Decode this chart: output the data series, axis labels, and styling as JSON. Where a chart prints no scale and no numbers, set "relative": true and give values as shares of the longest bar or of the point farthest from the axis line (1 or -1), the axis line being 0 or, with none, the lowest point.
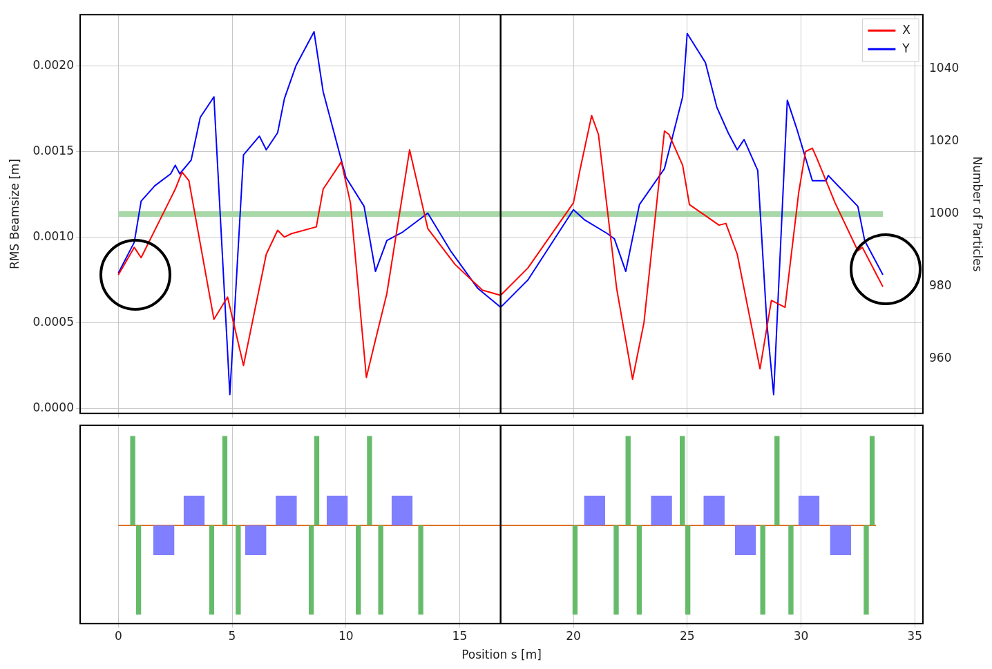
{
  "chart_data": [
    {
      "type": "line",
      "ylabel": "RMS Beamsize [m]",
      "y2label": "Number of Particles",
      "xlim": [
        -1.68,
        35.36
      ],
      "xticks": [
        0,
        5,
        10,
        15,
        20,
        25,
        30,
        35
      ],
      "ylim": [
        -3e-05,
        0.0023
      ],
      "yticks": [
        {
          "value": 0,
          "label": "0.0000"
        },
        {
          "value": 0.0005,
          "label": "0.0005"
        },
        {
          "value": 0.001,
          "label": "0.0010"
        },
        {
          "value": 0.0015,
          "label": "0.0015"
        },
        {
          "value": 0.002,
          "label": "0.0020"
        }
      ],
      "y2lim": [
        945,
        1055
      ],
      "y2ticks": [
        960,
        980,
        1000,
        1020,
        1040
      ],
      "grid": true,
      "legend": "top right",
      "tick_labels": "y",
      "marker": "none",
      "line_style": "solid",
      "ref_lines": [
        {
          "axis": "x",
          "value": 16.8,
          "color": "#000000"
        }
      ],
      "series": [
        {
          "name": "X",
          "color": "#ff0000",
          "x": [
            0,
            0.7,
            1.0,
            2.2,
            2.5,
            2.8,
            3.1,
            4.2,
            4.8,
            5.5,
            6.5,
            7.0,
            7.3,
            7.6,
            8.7,
            9.0,
            9.8,
            10.2,
            10.9,
            11.3,
            11.8,
            12.8,
            13.6,
            14.8,
            16.0,
            16.8,
            18.0,
            20.0,
            20.3,
            20.8,
            21.1,
            21.9,
            22.6,
            23.1,
            24.0,
            24.2,
            24.8,
            25.1,
            26.4,
            26.7,
            27.2,
            28.2,
            28.7,
            29.3,
            29.9,
            30.2,
            30.5,
            30.7,
            31.5,
            32.5,
            32.7,
            33.6
          ],
          "values": [
            0.00078,
            0.00094,
            0.00088,
            0.0012,
            0.00128,
            0.00138,
            0.00133,
            0.00052,
            0.00065,
            0.00025,
            0.0009,
            0.00104,
            0.001,
            0.00102,
            0.00106,
            0.00128,
            0.00144,
            0.0012,
            0.00018,
            0.0004,
            0.00067,
            0.00151,
            0.00105,
            0.00084,
            0.00069,
            0.00066,
            0.00082,
            0.0012,
            0.0014,
            0.00171,
            0.0016,
            0.0007,
            0.00017,
            0.0005,
            0.00162,
            0.0016,
            0.00142,
            0.00119,
            0.00107,
            0.00108,
            0.0009,
            0.00023,
            0.00063,
            0.00059,
            0.00126,
            0.0015,
            0.00152,
            0.00146,
            0.0012,
            0.00092,
            0.00094,
            0.00071
          ]
        },
        {
          "name": "Y",
          "color": "#0000ff",
          "x": [
            0,
            0.7,
            1.0,
            1.6,
            2.3,
            2.5,
            2.7,
            3.2,
            3.6,
            4.2,
            4.9,
            5.5,
            6.2,
            6.5,
            7.0,
            7.3,
            7.8,
            8.6,
            9.0,
            10.0,
            10.8,
            11.3,
            11.8,
            12.5,
            13.6,
            14.6,
            15.8,
            16.8,
            18.0,
            20.0,
            20.5,
            21.5,
            21.8,
            22.3,
            22.9,
            24.0,
            24.8,
            25.0,
            25.8,
            26.3,
            26.8,
            27.2,
            27.5,
            28.1,
            28.5,
            28.8,
            29.4,
            29.8,
            30.5,
            31.1,
            31.2,
            32.5,
            32.8,
            33.6
          ],
          "values": [
            0.00079,
            0.00097,
            0.00121,
            0.0013,
            0.00137,
            0.00142,
            0.00137,
            0.00145,
            0.0017,
            0.00182,
            8e-05,
            0.00148,
            0.00159,
            0.00151,
            0.00161,
            0.00181,
            0.002,
            0.0022,
            0.00185,
            0.00135,
            0.00118,
            0.0008,
            0.00098,
            0.00103,
            0.00114,
            0.00092,
            0.0007,
            0.00059,
            0.00075,
            0.00116,
            0.0011,
            0.00102,
            0.00099,
            0.0008,
            0.00119,
            0.0014,
            0.00182,
            0.00219,
            0.00202,
            0.00176,
            0.00161,
            0.00151,
            0.00157,
            0.00139,
            0.0005,
            8e-05,
            0.0018,
            0.00164,
            0.00133,
            0.00133,
            0.00136,
            0.00118,
            0.00098,
            0.00078
          ]
        },
        {
          "color": "#a8d8a8",
          "axis": "y2",
          "x": [
            0,
            33.6
          ],
          "values": [
            1000,
            1000
          ]
        }
      ]
    },
    {
      "type": "bar",
      "relative": true,
      "xlabel": "Position s [m]",
      "xlim": [
        -1.68,
        35.36
      ],
      "xticks": [
        0,
        5,
        10,
        15,
        20,
        25,
        30,
        35
      ],
      "grid": "x",
      "tick_labels": "x",
      "ref_lines": [
        {
          "axis": "x",
          "value": 16.8,
          "color": "#000000"
        }
      ],
      "series": [
        {
          "color": "#66bb6a",
          "x": [
            0.63,
            0.89,
            4.1,
            4.68,
            5.27,
            8.48,
            8.72,
            10.55,
            11.04,
            11.53,
            13.29,
            20.07,
            21.88,
            22.4,
            22.89,
            24.79,
            25.03,
            28.32,
            28.95,
            29.56,
            32.87,
            33.13
          ],
          "values": [
            1,
            -1,
            -1,
            1,
            -1,
            -1,
            1,
            -1,
            1,
            -1,
            -1,
            -1,
            -1,
            1,
            -1,
            1,
            -1,
            -1,
            1,
            -1,
            -1,
            1
          ]
        },
        {
          "color": "#7f7fff",
          "x": [
            2.0,
            3.33,
            6.04,
            7.38,
            9.62,
            12.47,
            20.93,
            23.87,
            26.18,
            27.56,
            30.35,
            31.74
          ],
          "values": [
            -0.33,
            0.33,
            -0.33,
            0.33,
            0.33,
            0.33,
            0.33,
            0.33,
            0.33,
            -0.33,
            0.33,
            -0.33
          ]
        },
        {
          "type": "line",
          "color": "#e07020",
          "x": [
            0,
            33.3
          ],
          "values": [
            0,
            0
          ]
        }
      ]
    }
  ]
}
